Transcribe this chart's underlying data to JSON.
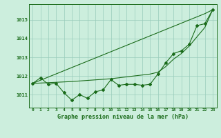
{
  "x": [
    0,
    1,
    2,
    3,
    4,
    5,
    6,
    7,
    8,
    9,
    10,
    11,
    12,
    13,
    14,
    15,
    16,
    17,
    18,
    19,
    20,
    21,
    22,
    23
  ],
  "y_main": [
    1011.6,
    1011.9,
    1011.55,
    1011.6,
    1011.1,
    1010.7,
    1011.0,
    1010.8,
    1011.15,
    1011.25,
    1011.8,
    1011.5,
    1011.55,
    1011.55,
    1011.5,
    1011.55,
    1012.1,
    1012.7,
    1013.2,
    1013.35,
    1013.7,
    1014.7,
    1014.8,
    1015.55
  ],
  "y_trend_straight": [
    1011.6,
    1011.77,
    1011.94,
    1012.11,
    1012.28,
    1012.45,
    1012.62,
    1012.79,
    1012.96,
    1013.13,
    1013.3,
    1013.47,
    1013.64,
    1013.81,
    1013.98,
    1014.15,
    1014.32,
    1014.49,
    1014.66,
    1014.83,
    1015.0,
    1015.17,
    1015.34,
    1015.55
  ],
  "y_trend_curve": [
    1011.6,
    1011.62,
    1011.64,
    1011.66,
    1011.68,
    1011.7,
    1011.73,
    1011.76,
    1011.79,
    1011.82,
    1011.85,
    1011.9,
    1011.95,
    1012.0,
    1012.05,
    1012.1,
    1012.2,
    1012.5,
    1012.9,
    1013.2,
    1013.6,
    1014.1,
    1014.6,
    1015.55
  ],
  "line_color": "#1a6b1a",
  "bg_color": "#cceedd",
  "grid_color": "#99ccbb",
  "ylabel_ticks": [
    1011,
    1012,
    1013,
    1014,
    1015
  ],
  "xlabel": "Graphe pression niveau de la mer (hPa)",
  "ylim": [
    1010.3,
    1015.85
  ],
  "xlim": [
    -0.5,
    23.5
  ]
}
